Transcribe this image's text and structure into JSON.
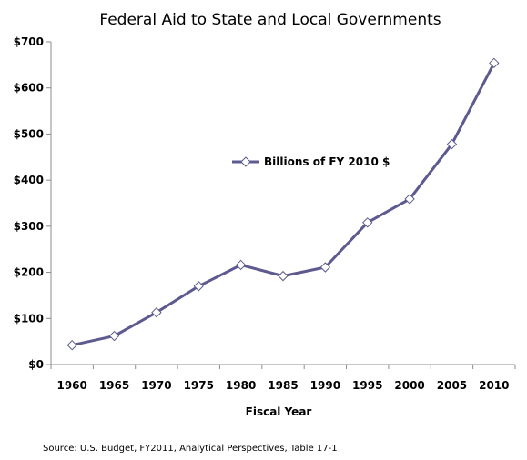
{
  "chart_data": {
    "type": "line",
    "title": "Federal Aid to State and Local Governments",
    "xlabel": "Fiscal Year",
    "ylabel": "",
    "categories": [
      "1960",
      "1965",
      "1970",
      "1975",
      "1980",
      "1985",
      "1990",
      "1995",
      "2000",
      "2005",
      "2010"
    ],
    "y_ticks": [
      "$0",
      "$100",
      "$200",
      "$300",
      "$400",
      "$500",
      "$600",
      "$700"
    ],
    "ylim": [
      0,
      700
    ],
    "grid": false,
    "legend_position": "center",
    "series": [
      {
        "name": "Billions of FY 2010 $",
        "values": [
          42,
          62,
          113,
          170,
          216,
          192,
          211,
          308,
          359,
          478,
          654
        ],
        "color": "#5c5a8e",
        "marker": "diamond"
      }
    ],
    "source": "Source: U.S. Budget, FY2011, Analytical Perspectives, Table 17-1"
  }
}
